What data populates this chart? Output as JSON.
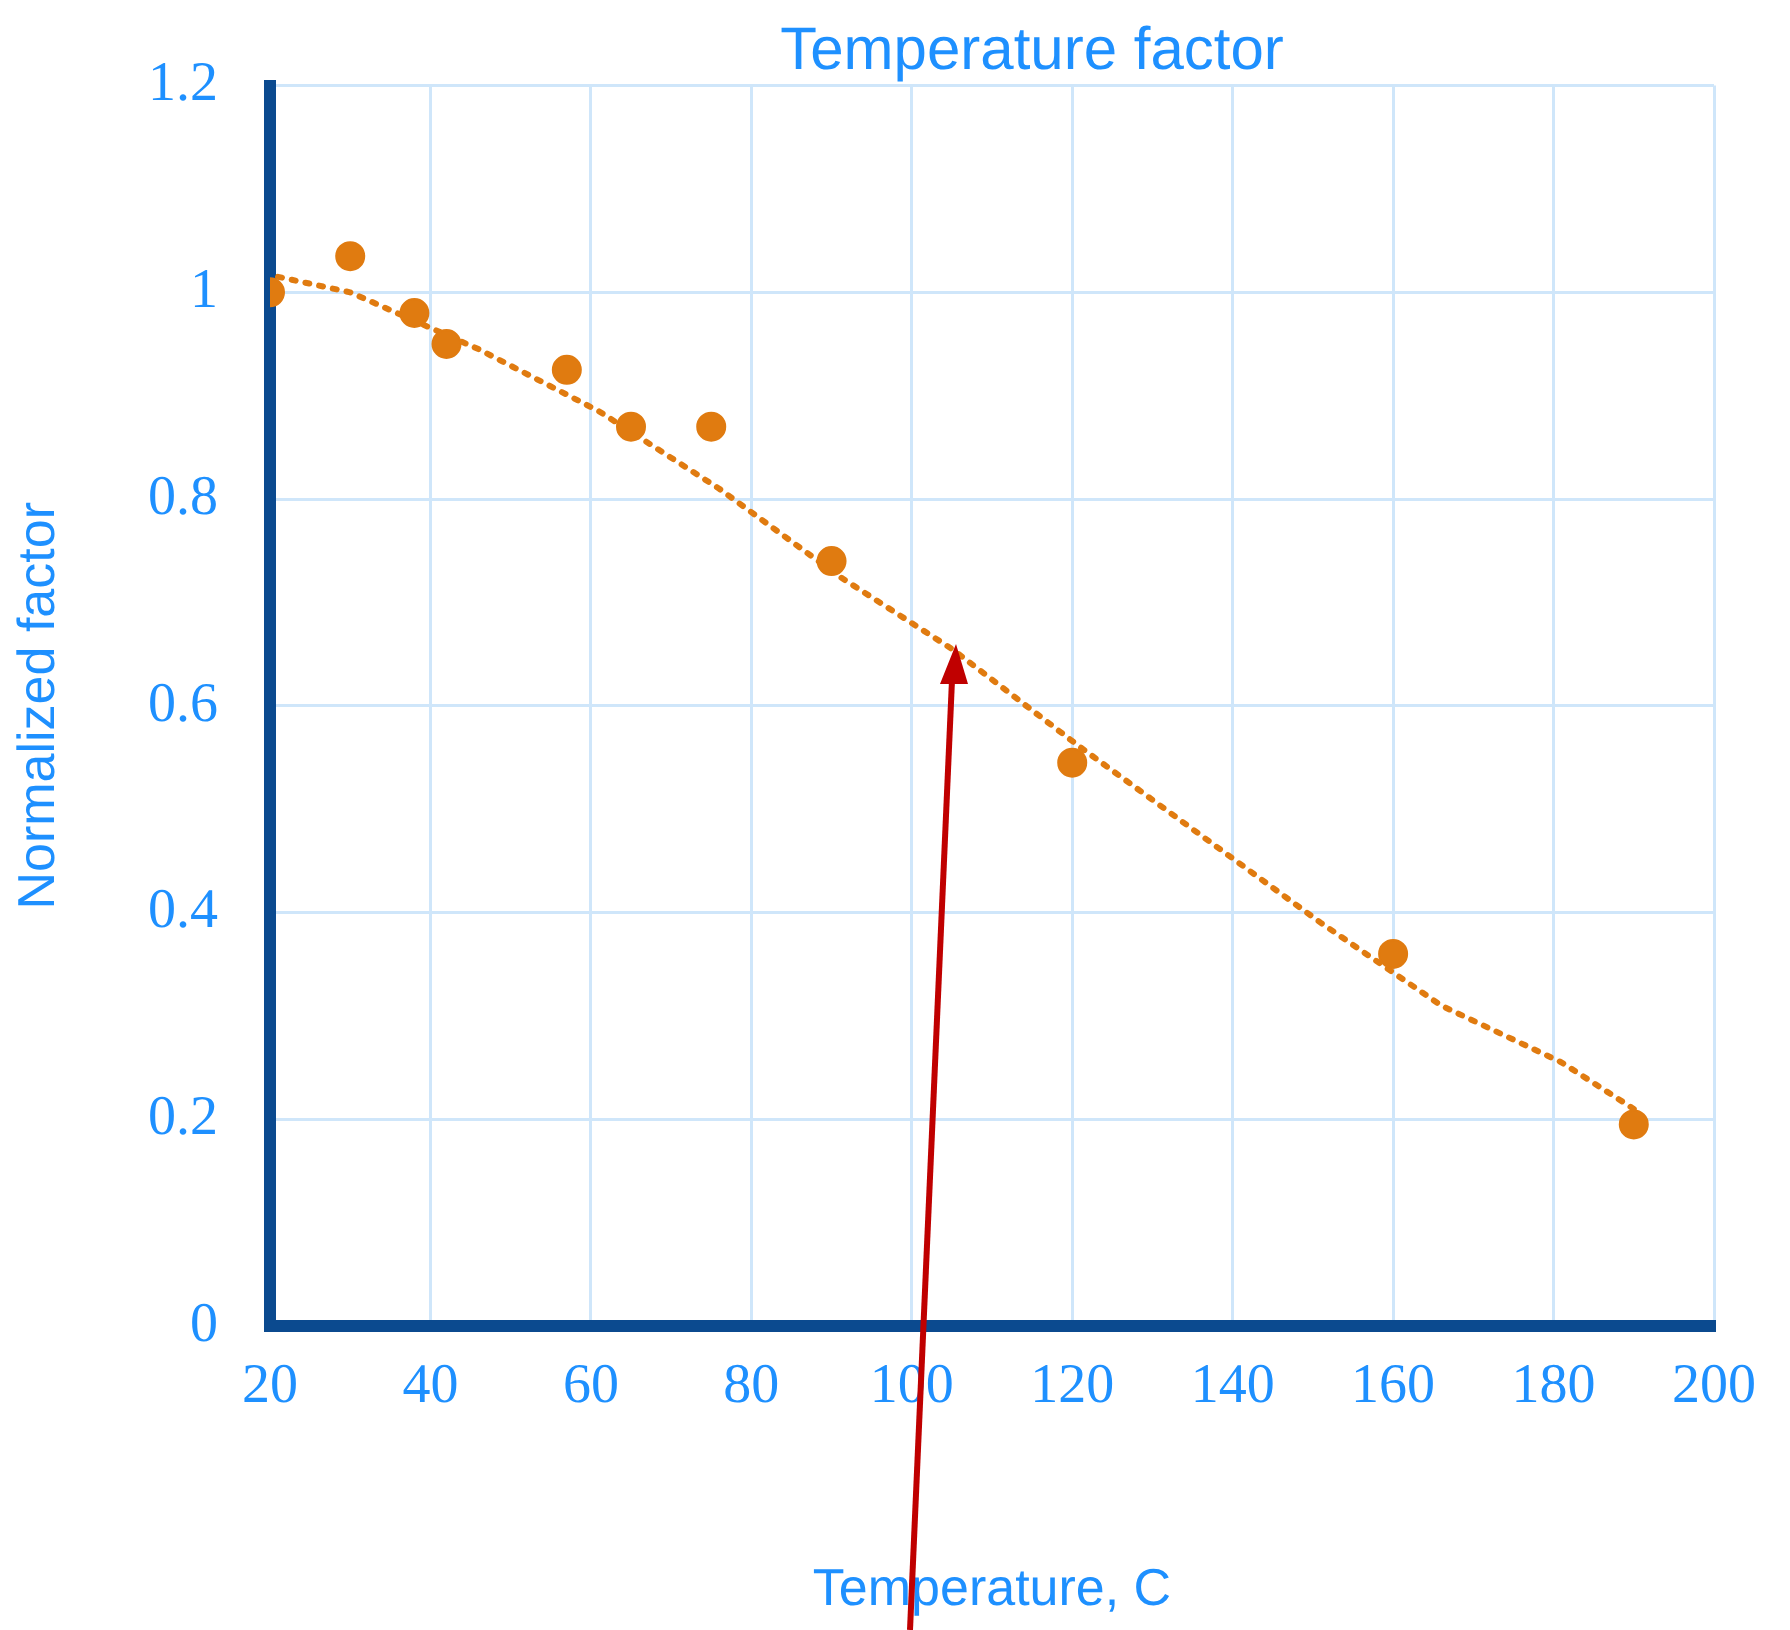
{
  "chart_data": {
    "type": "scatter",
    "title": "Temperature factor",
    "xlabel": "Temperature, C",
    "ylabel": "Normalized factor",
    "xlim": [
      20,
      200
    ],
    "xticks": [
      20,
      40,
      60,
      80,
      100,
      120,
      140,
      160,
      180,
      200
    ],
    "ylim": [
      0,
      1.2
    ],
    "yticks": [
      0,
      0.2,
      0.4,
      0.6,
      0.8,
      1,
      1.2
    ],
    "grid": true,
    "legend": false,
    "marker": "circle",
    "series": [
      {
        "color": "#e07b10",
        "x": [
          20,
          30,
          38,
          42,
          57,
          65,
          75,
          90,
          120,
          160,
          190
        ],
        "values": [
          1.0,
          1.035,
          0.98,
          0.95,
          0.925,
          0.87,
          0.87,
          0.74,
          0.545,
          0.36,
          0.195
        ]
      },
      {
        "type": "line",
        "color": "#e07b10",
        "line_style": "dotted",
        "marker": "none",
        "x": [
          21,
          30,
          46,
          61,
          76,
          91,
          105,
          121,
          136,
          151,
          166,
          181,
          190
        ],
        "values": [
          1.015,
          1.0,
          0.945,
          0.885,
          0.81,
          0.725,
          0.655,
          0.56,
          0.475,
          0.39,
          0.31,
          0.255,
          0.21
        ]
      }
    ]
  }
}
